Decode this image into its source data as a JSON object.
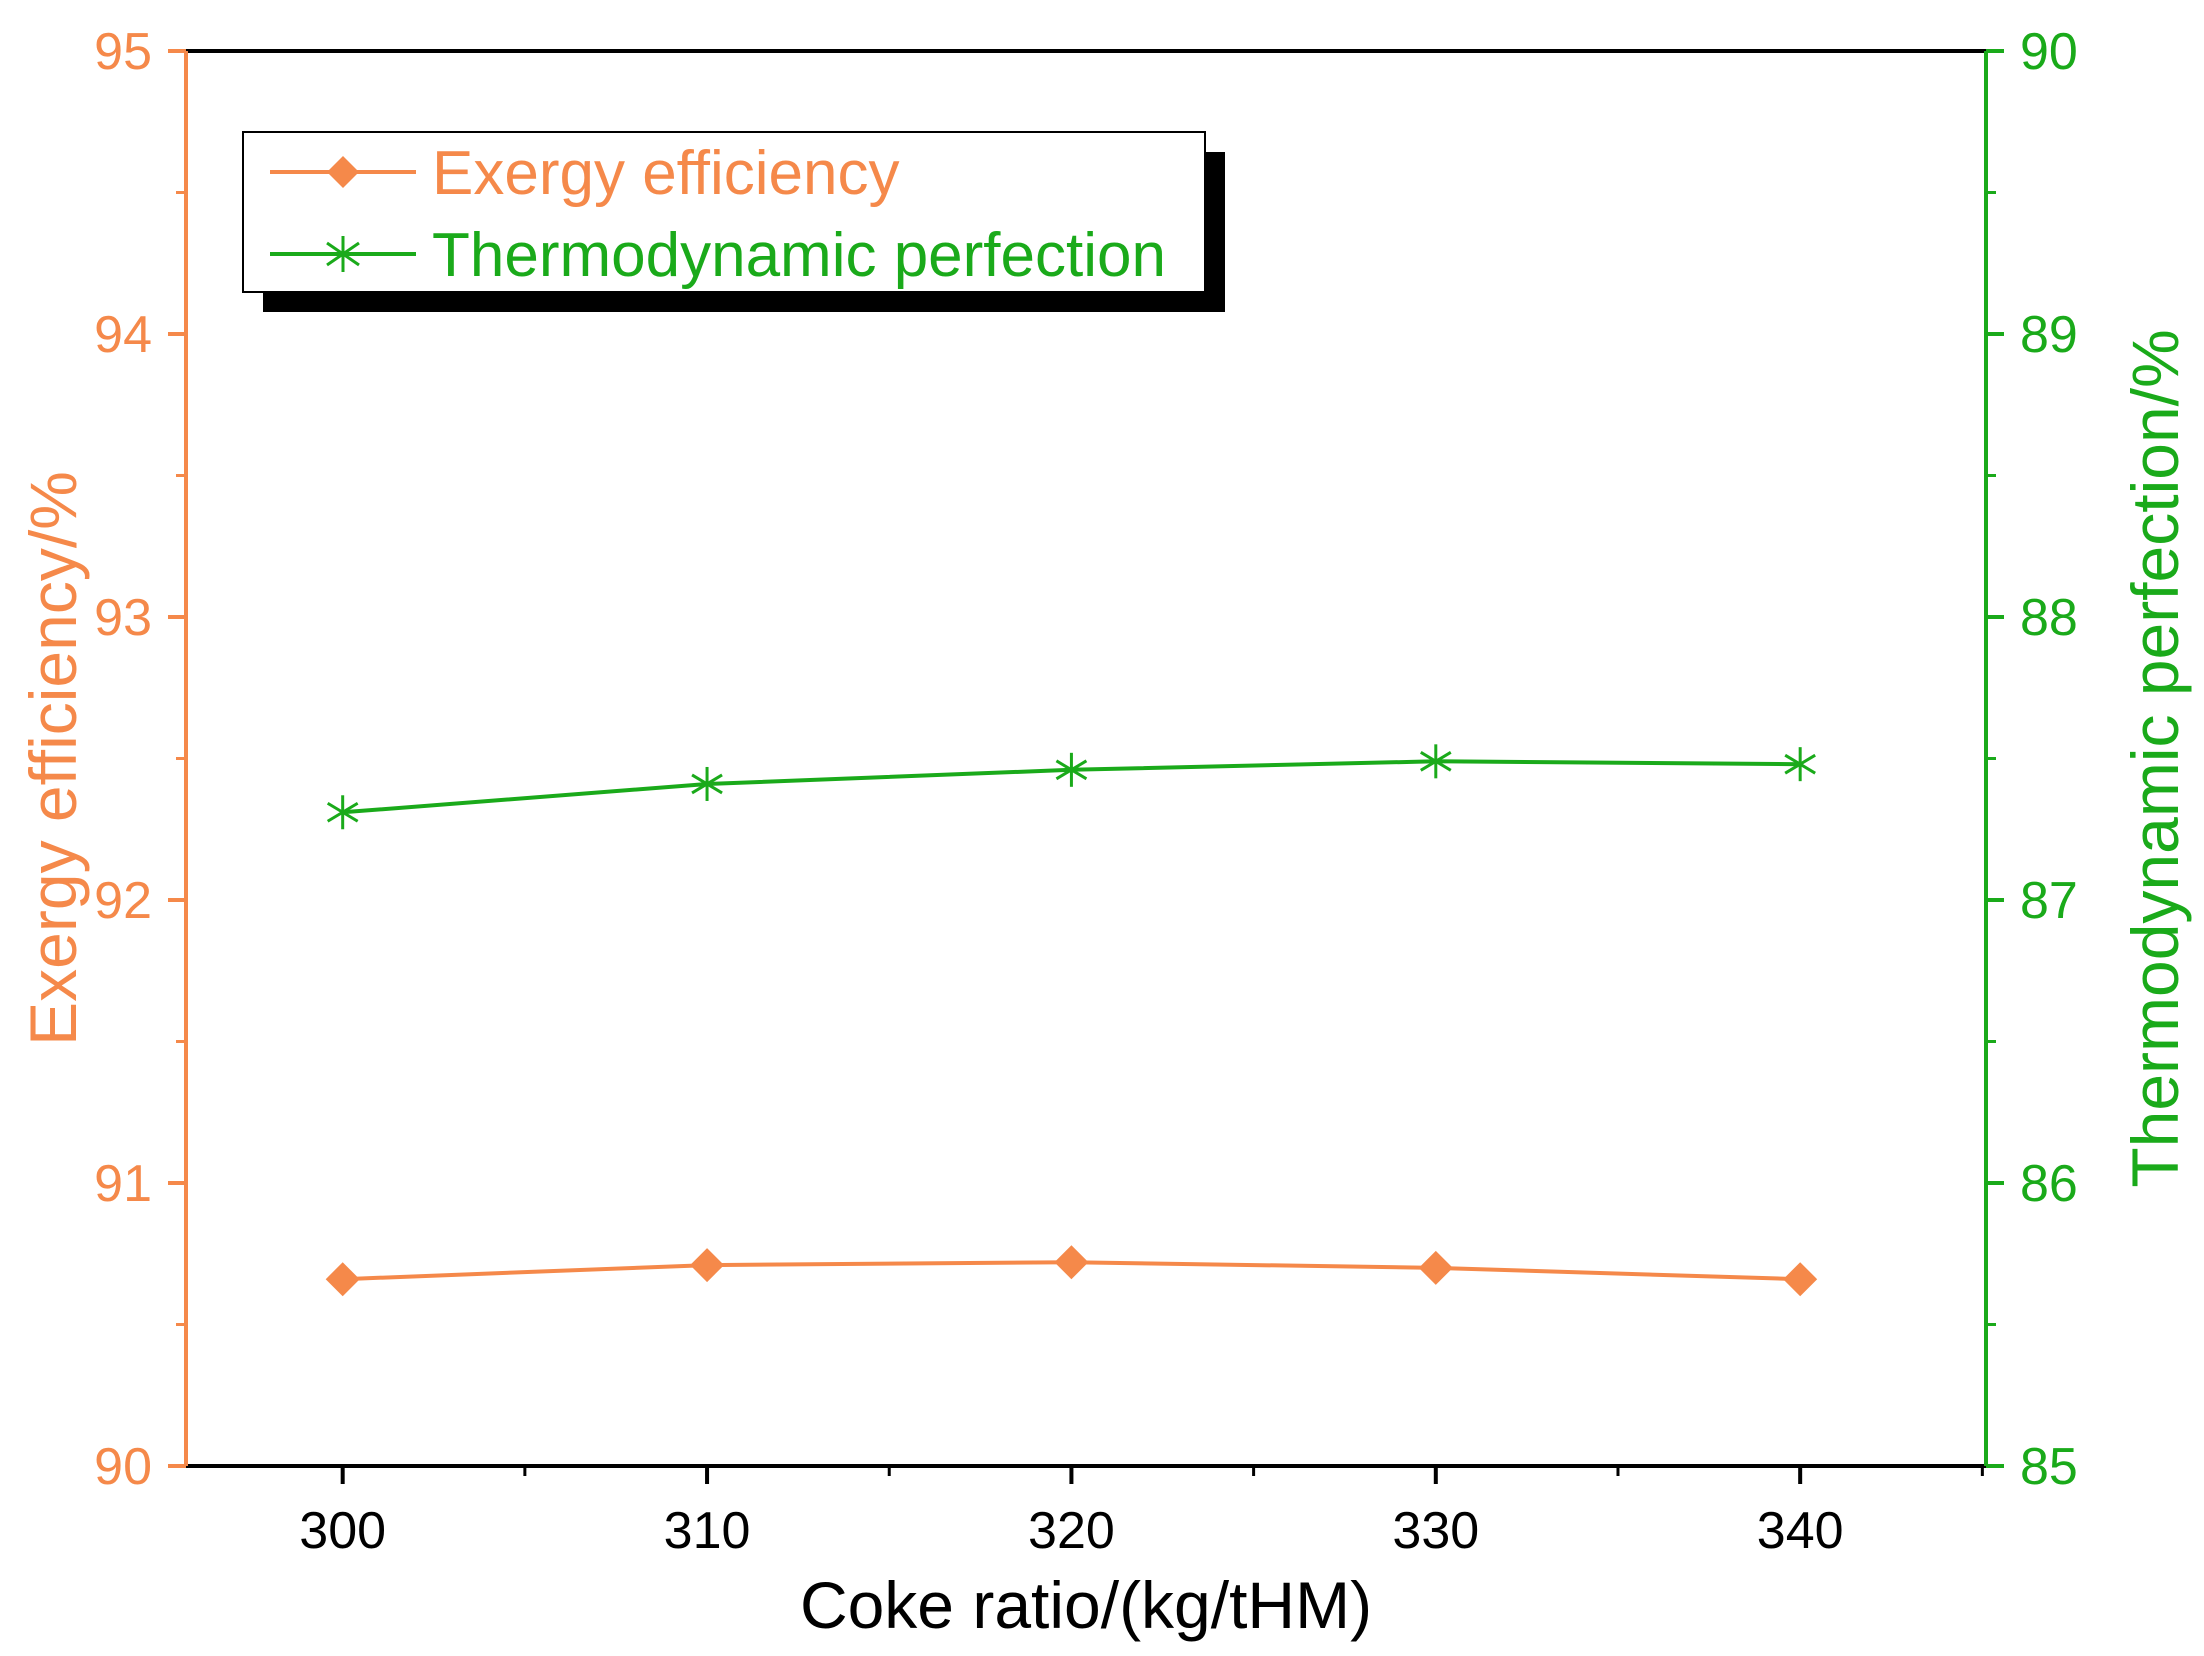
{
  "chart_data": {
    "type": "line",
    "x": [
      300,
      310,
      320,
      330,
      340
    ],
    "x_ticks": [
      300,
      310,
      320,
      330,
      340
    ],
    "x_tick_labels": [
      "300",
      "310",
      "320",
      "330",
      "340"
    ],
    "xlim": [
      295.7,
      345.1
    ],
    "xlabel": "Coke ratio/(kg/tHM)",
    "y_left": {
      "label": "Exergy efficiency/%",
      "lim": [
        90,
        95
      ],
      "ticks": [
        90,
        91,
        92,
        93,
        94,
        95
      ],
      "tick_labels": [
        "90",
        "91",
        "92",
        "93",
        "94",
        "95"
      ],
      "minor_step": 0.5,
      "color": "#F5894A"
    },
    "y_right": {
      "label": "Thermodynamic perfection/%",
      "lim": [
        85,
        90
      ],
      "ticks": [
        85,
        86,
        87,
        88,
        89,
        90
      ],
      "tick_labels": [
        "85",
        "86",
        "87",
        "88",
        "89",
        "90"
      ],
      "minor_step": 0.5,
      "color": "#1AAA1A"
    },
    "series": [
      {
        "name": "Exergy efficiency",
        "axis": "left",
        "marker": "diamond",
        "color": "#F5894A",
        "values": [
          90.66,
          90.71,
          90.72,
          90.7,
          90.66
        ]
      },
      {
        "name": "Thermodynamic perfection",
        "axis": "right",
        "marker": "asterisk",
        "color": "#1AAA1A",
        "values": [
          87.31,
          87.41,
          87.46,
          87.49,
          87.48
        ]
      }
    ],
    "legend": {
      "position": "top-left",
      "entries": [
        "Exergy efficiency",
        "Thermodynamic perfection"
      ]
    }
  }
}
